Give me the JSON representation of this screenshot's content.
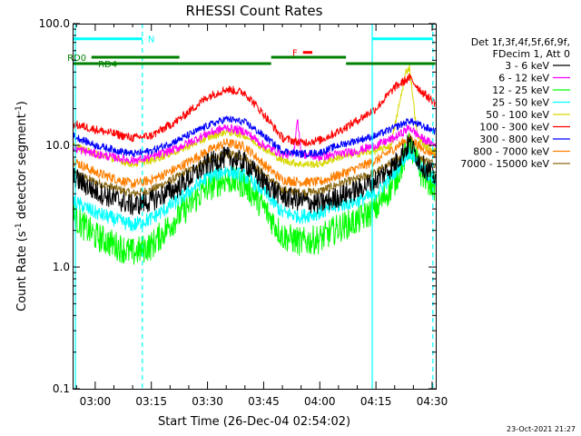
{
  "chart_data": {
    "type": "line",
    "title": "RHESSI Count Rates",
    "xlabel": "Start Time (26-Dec-04 02:54:02)",
    "ylabel_main": "Count Rate (s",
    "ylabel_sup1": "-1",
    "ylabel_mid": " detector segment",
    "ylabel_sup2": "-1",
    "ylabel_end": ")",
    "y_scale": "log",
    "ylim": [
      0.1,
      100
    ],
    "x_range_minutes": [
      -6.03,
      90.97
    ],
    "xticks": [
      {
        "label": "03:00",
        "min": 0
      },
      {
        "label": "03:15",
        "min": 15
      },
      {
        "label": "03:30",
        "min": 30
      },
      {
        "label": "03:45",
        "min": 45
      },
      {
        "label": "04:00",
        "min": 60
      },
      {
        "label": "04:15",
        "min": 75
      },
      {
        "label": "04:30",
        "min": 90
      }
    ],
    "yticks": [
      {
        "label": "0.1",
        "value": 0.1
      },
      {
        "label": "1.0",
        "value": 1
      },
      {
        "label": "10.0",
        "value": 10
      },
      {
        "label": "100.0",
        "value": 100
      }
    ],
    "legend_header": [
      "Det 1f,3f,4f,5f,6f,9f,",
      "FDecim 1, Att 0"
    ],
    "series": [
      {
        "name": "3 - 6 keV",
        "color": "#000000",
        "points": [
          [
            -6,
            5.5
          ],
          [
            0,
            4.2
          ],
          [
            10,
            3.2
          ],
          [
            15,
            3.5
          ],
          [
            22,
            4.5
          ],
          [
            30,
            7.0
          ],
          [
            35,
            8.0
          ],
          [
            40,
            7.2
          ],
          [
            45,
            5.0
          ],
          [
            50,
            3.8
          ],
          [
            55,
            3.5
          ],
          [
            60,
            3.3
          ],
          [
            65,
            3.8
          ],
          [
            70,
            4.3
          ],
          [
            75,
            5.2
          ],
          [
            80,
            7.0
          ],
          [
            84,
            10.5
          ],
          [
            87,
            7.0
          ],
          [
            91,
            5.5
          ]
        ],
        "noise": 0.09
      },
      {
        "name": "6 - 12 keV",
        "color": "#ff00ff",
        "points": [
          [
            -6,
            9.5
          ],
          [
            0,
            8.5
          ],
          [
            10,
            7.5
          ],
          [
            15,
            8.0
          ],
          [
            22,
            9.5
          ],
          [
            30,
            12.5
          ],
          [
            35,
            14.0
          ],
          [
            40,
            13.0
          ],
          [
            45,
            10.0
          ],
          [
            50,
            8.5
          ],
          [
            53,
            8.3
          ],
          [
            54,
            17.0
          ],
          [
            55,
            8.5
          ],
          [
            60,
            8.0
          ],
          [
            65,
            8.5
          ],
          [
            70,
            9.0
          ],
          [
            75,
            10.0
          ],
          [
            80,
            11.5
          ],
          [
            84,
            14.0
          ],
          [
            87,
            11.5
          ],
          [
            91,
            10.0
          ]
        ],
        "noise": 0.035
      },
      {
        "name": "12 - 25 keV",
        "color": "#00ff00",
        "points": [
          [
            -6,
            2.6
          ],
          [
            0,
            1.8
          ],
          [
            10,
            1.3
          ],
          [
            15,
            1.5
          ],
          [
            22,
            2.6
          ],
          [
            30,
            4.5
          ],
          [
            35,
            5.3
          ],
          [
            40,
            4.8
          ],
          [
            45,
            3.1
          ],
          [
            50,
            1.8
          ],
          [
            55,
            1.6
          ],
          [
            60,
            1.7
          ],
          [
            65,
            2.1
          ],
          [
            70,
            2.4
          ],
          [
            75,
            3.0
          ],
          [
            80,
            5.0
          ],
          [
            84,
            10.0
          ],
          [
            87,
            6.0
          ],
          [
            91,
            4.5
          ]
        ],
        "noise": 0.12
      },
      {
        "name": "25 - 50 keV",
        "color": "#00ffff",
        "points": [
          [
            -6,
            3.5
          ],
          [
            0,
            2.8
          ],
          [
            10,
            2.2
          ],
          [
            15,
            2.5
          ],
          [
            22,
            3.5
          ],
          [
            30,
            5.5
          ],
          [
            35,
            6.2
          ],
          [
            40,
            5.6
          ],
          [
            45,
            4.2
          ],
          [
            50,
            2.8
          ],
          [
            55,
            2.6
          ],
          [
            60,
            2.8
          ],
          [
            65,
            3.2
          ],
          [
            70,
            3.5
          ],
          [
            75,
            4.0
          ],
          [
            80,
            6.0
          ],
          [
            84,
            9.0
          ],
          [
            87,
            6.5
          ],
          [
            91,
            5.0
          ]
        ],
        "noise": 0.06
      },
      {
        "name": "50 - 100 keV",
        "color": "#d8d800",
        "points": [
          [
            -6,
            10.0
          ],
          [
            0,
            8.5
          ],
          [
            10,
            7.0
          ],
          [
            15,
            7.5
          ],
          [
            22,
            9.0
          ],
          [
            30,
            11.5
          ],
          [
            35,
            13.0
          ],
          [
            40,
            12.0
          ],
          [
            45,
            9.5
          ],
          [
            50,
            7.5
          ],
          [
            55,
            7.0
          ],
          [
            60,
            7.0
          ],
          [
            65,
            8.0
          ],
          [
            70,
            8.5
          ],
          [
            75,
            9.0
          ],
          [
            79,
            10.0
          ],
          [
            81,
            20.0
          ],
          [
            83,
            40.0
          ],
          [
            84,
            44.0
          ],
          [
            86,
            12.0
          ],
          [
            88,
            10.0
          ],
          [
            91,
            9.0
          ]
        ],
        "noise": 0.03
      },
      {
        "name": "100 - 300 keV",
        "color": "#ff0000",
        "points": [
          [
            -6,
            15.0
          ],
          [
            0,
            13.5
          ],
          [
            10,
            11.5
          ],
          [
            15,
            12.0
          ],
          [
            22,
            16.0
          ],
          [
            30,
            25.0
          ],
          [
            35,
            29.0
          ],
          [
            40,
            27.0
          ],
          [
            45,
            18.0
          ],
          [
            50,
            11.5
          ],
          [
            55,
            10.5
          ],
          [
            60,
            11.0
          ],
          [
            65,
            13.0
          ],
          [
            70,
            16.0
          ],
          [
            75,
            20.0
          ],
          [
            80,
            30.0
          ],
          [
            84,
            36.0
          ],
          [
            87,
            28.0
          ],
          [
            91,
            22.0
          ]
        ],
        "noise": 0.035
      },
      {
        "name": "300 - 800 keV",
        "color": "#0000ff",
        "points": [
          [
            -6,
            12.0
          ],
          [
            0,
            10.0
          ],
          [
            10,
            8.5
          ],
          [
            15,
            9.0
          ],
          [
            22,
            11.0
          ],
          [
            30,
            14.5
          ],
          [
            35,
            16.5
          ],
          [
            40,
            15.5
          ],
          [
            45,
            12.0
          ],
          [
            50,
            9.0
          ],
          [
            55,
            8.5
          ],
          [
            60,
            8.7
          ],
          [
            65,
            10.0
          ],
          [
            70,
            11.0
          ],
          [
            75,
            12.0
          ],
          [
            80,
            14.0
          ],
          [
            84,
            16.0
          ],
          [
            87,
            14.5
          ],
          [
            91,
            13.0
          ]
        ],
        "noise": 0.03
      },
      {
        "name": "800 - 7000 keV",
        "color": "#ff7f00",
        "points": [
          [
            -6,
            7.5
          ],
          [
            0,
            6.0
          ],
          [
            10,
            4.8
          ],
          [
            15,
            5.2
          ],
          [
            22,
            6.5
          ],
          [
            30,
            9.0
          ],
          [
            35,
            10.5
          ],
          [
            40,
            9.8
          ],
          [
            45,
            7.0
          ],
          [
            50,
            5.2
          ],
          [
            55,
            5.0
          ],
          [
            60,
            5.0
          ],
          [
            65,
            5.7
          ],
          [
            70,
            6.5
          ],
          [
            75,
            7.5
          ],
          [
            80,
            9.5
          ],
          [
            84,
            11.5
          ],
          [
            87,
            9.5
          ],
          [
            91,
            8.5
          ]
        ],
        "noise": 0.04
      },
      {
        "name": "7000 - 15000 keV",
        "color": "#8b6914",
        "points": [
          [
            -6,
            6.0
          ],
          [
            0,
            5.0
          ],
          [
            10,
            4.0
          ],
          [
            15,
            4.3
          ],
          [
            22,
            5.5
          ],
          [
            30,
            7.5
          ],
          [
            35,
            8.5
          ],
          [
            40,
            8.0
          ],
          [
            45,
            5.8
          ],
          [
            50,
            4.3
          ],
          [
            55,
            4.1
          ],
          [
            60,
            4.2
          ],
          [
            65,
            4.8
          ],
          [
            70,
            5.3
          ],
          [
            75,
            6.0
          ],
          [
            80,
            7.5
          ],
          [
            84,
            9.5
          ],
          [
            87,
            7.8
          ],
          [
            91,
            7.0
          ]
        ],
        "noise": 0.035
      }
    ],
    "vertical_lines": [
      {
        "min": -5.3,
        "style": "solid",
        "color": "#00ffff"
      },
      {
        "min": 12.6,
        "style": "dashed",
        "color": "#00ffff"
      },
      {
        "min": 74.0,
        "style": "solid",
        "color": "#00ffff"
      },
      {
        "min": 90.2,
        "style": "dashed",
        "color": "#00ffff"
      }
    ],
    "bars": [
      {
        "label": "N",
        "color": "#00ffff",
        "y": 75,
        "from": -6.0,
        "to": 12.6,
        "label_side": "right"
      },
      {
        "label": "",
        "color": "#00ffff",
        "y": 75,
        "from": 74.0,
        "to": 90.2,
        "label_side": "none"
      },
      {
        "label": "F",
        "color": "#ff0000",
        "y": 58,
        "from": 55.5,
        "to": 58.0,
        "label_side": "left"
      },
      {
        "label": "RD0",
        "color": "#008000",
        "y": 53,
        "from": -1.0,
        "to": 22.5,
        "label_side": "above-left"
      },
      {
        "label": "",
        "color": "#008000",
        "y": 53,
        "from": 47.0,
        "to": 67.0,
        "label_side": "none"
      },
      {
        "label": "RD4",
        "color": "#008000",
        "y": 47,
        "from": -6.0,
        "to": 22.5,
        "label_side": "right-of-start"
      },
      {
        "label": "",
        "color": "#008000",
        "y": 47,
        "from": 22.5,
        "to": 47.0,
        "label_side": "none"
      },
      {
        "label": "",
        "color": "#008000",
        "y": 47,
        "from": 67.0,
        "to": 90.9,
        "label_side": "none"
      }
    ]
  },
  "footer_text": "23-Oct-2021 21:27"
}
